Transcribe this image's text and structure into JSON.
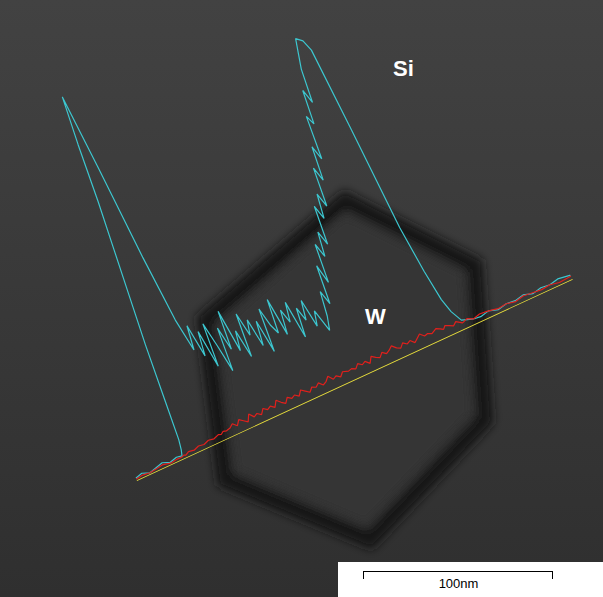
{
  "chart_data": {
    "type": "line",
    "xlim": [
      0,
      252
    ],
    "ylim": [
      0,
      400
    ],
    "grid": false,
    "tick_labels": false,
    "x": [
      0,
      4,
      8,
      12,
      16,
      20,
      24,
      27,
      28,
      29,
      31,
      34,
      37,
      40,
      43,
      46,
      49,
      50.5,
      52,
      53.7,
      56,
      58,
      60,
      62,
      64,
      66,
      68,
      70,
      72,
      74,
      76,
      78,
      80,
      82,
      84,
      86,
      88,
      90,
      92,
      94,
      96,
      98,
      100,
      102,
      104,
      106,
      108,
      110,
      112,
      114,
      116,
      118,
      120,
      122,
      125,
      127,
      129,
      131,
      133,
      135,
      137,
      139,
      141,
      143,
      145,
      147,
      149,
      151,
      153,
      155,
      157,
      159,
      161,
      163,
      165,
      167,
      169,
      171,
      173,
      176,
      178,
      179.5,
      181,
      183,
      185,
      187,
      190,
      193,
      196,
      200,
      205,
      210,
      215,
      220,
      225,
      230,
      235,
      240,
      245,
      252
    ],
    "series": [
      {
        "name": "Si",
        "color": "#3cc6cf",
        "values": [
          3,
          5,
          2,
          4,
          6,
          3,
          5,
          4,
          10,
          20,
          60,
          120,
          170,
          220,
          270,
          330,
          380,
          300,
          200,
          130,
          95,
          120,
          85,
          110,
          70,
          115,
          90,
          60,
          105,
          80,
          120,
          75,
          95,
          65,
          110,
          85,
          100,
          70,
          95,
          60,
          105,
          85,
          75,
          110,
          70,
          95,
          80,
          100,
          60,
          90,
          75,
          95,
          65,
          80,
          56,
          70,
          95,
          80,
          120,
          100,
          140,
          125,
          150,
          135,
          175,
          160,
          185,
          170,
          210,
          195,
          230,
          215,
          260,
          250,
          285,
          270,
          305,
          320,
          335,
          330,
          318,
          230,
          120,
          70,
          37,
          22,
          10,
          8,
          6,
          5,
          7,
          4,
          6,
          5,
          7,
          4,
          6,
          5,
          7,
          5
        ]
      },
      {
        "name": "W",
        "color": "#e0201c",
        "values": [
          2,
          3,
          2,
          3,
          4,
          2,
          3,
          3,
          4,
          3,
          5,
          4,
          6,
          5,
          7,
          6,
          8,
          7,
          9,
          8,
          9,
          12,
          8,
          13,
          10,
          7,
          14,
          9,
          11,
          8,
          13,
          10,
          12,
          9,
          15,
          11,
          8,
          13,
          10,
          12,
          9,
          14,
          11,
          8,
          12,
          10,
          13,
          9,
          11,
          15,
          10,
          12,
          9,
          13,
          11,
          12,
          10,
          14,
          11,
          13,
          9,
          15,
          12,
          10,
          14,
          11,
          13,
          16,
          12,
          10,
          14,
          11,
          13,
          9,
          12,
          15,
          11,
          12,
          10,
          13,
          11,
          9,
          12,
          10,
          8,
          11,
          7,
          9,
          6,
          8,
          7,
          5,
          6,
          4,
          6,
          5,
          4,
          5,
          3,
          4
        ]
      }
    ],
    "scale_bar": {
      "length": 100,
      "label": "100nm"
    }
  }
}
